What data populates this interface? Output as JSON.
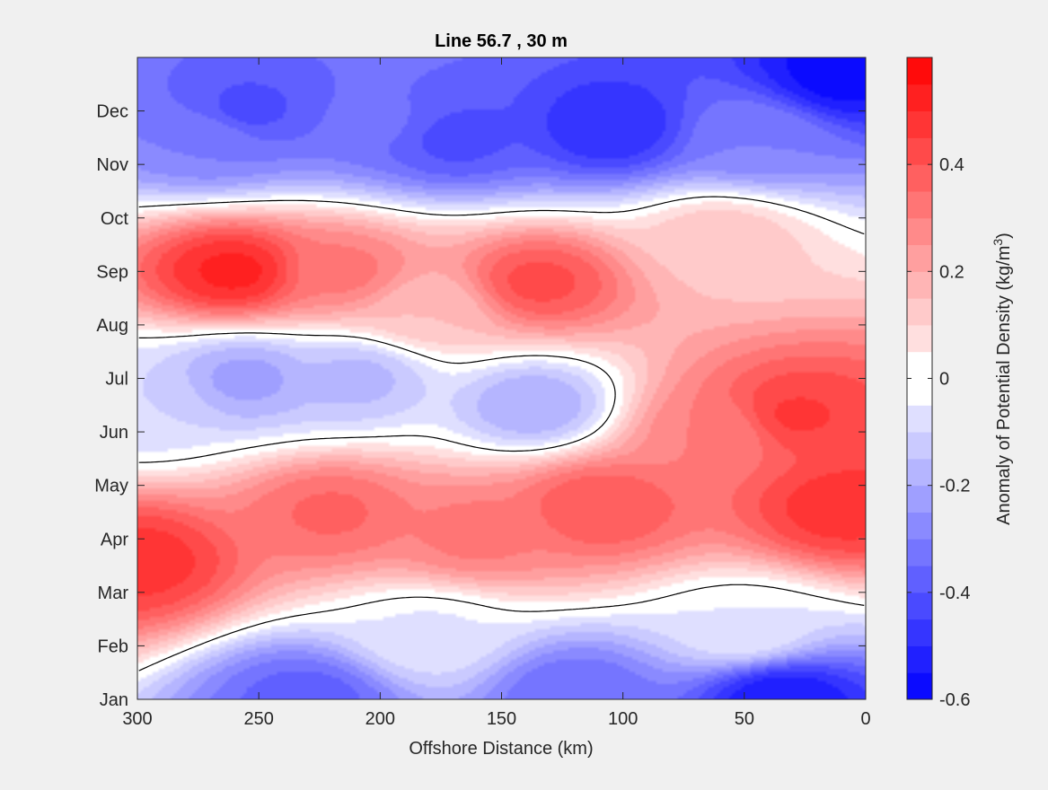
{
  "chart_data": {
    "type": "heatmap",
    "title": "Line 56.7 , 30 m",
    "xlabel": "Offshore Distance (km)",
    "ylabel": "",
    "colorbar_label": "Anomaly of Potential Density (kg/m",
    "colorbar_label_sup": "3",
    "colorbar_label_end": ")",
    "xlim": [
      300,
      0
    ],
    "x_reversed": true,
    "x_ticks": [
      "300",
      "250",
      "200",
      "150",
      "100",
      "50",
      "0"
    ],
    "x_tick_values": [
      300,
      250,
      200,
      150,
      100,
      50,
      0
    ],
    "y_ticks": [
      "Jan",
      "Feb",
      "Mar",
      "Apr",
      "May",
      "Jun",
      "Jul",
      "Aug",
      "Sep",
      "Oct",
      "Nov",
      "Dec"
    ],
    "clim": [
      -0.6,
      0.6
    ],
    "colorbar_ticks": [
      "-0.6",
      "-0.4",
      "-0.2",
      "0",
      "0.2",
      "0.4"
    ],
    "colorbar_tick_values": [
      -0.6,
      -0.4,
      -0.2,
      0,
      0.2,
      0.4
    ],
    "contour_levels_step": 0.05,
    "zero_contour_color": "#000000",
    "colormap": {
      "negative": "#0000ff",
      "zero": "#ffffff",
      "positive": "#ff0000"
    },
    "features": [
      {
        "x": 35,
        "month": 0,
        "value": -0.55
      },
      {
        "x": 10,
        "month": 11.7,
        "value": -0.58
      },
      {
        "x": 230,
        "month": 0,
        "value": -0.38
      },
      {
        "x": 120,
        "month": 0.1,
        "value": -0.35
      },
      {
        "x": 255,
        "month": 11.0,
        "value": -0.42
      },
      {
        "x": 105,
        "month": 10.7,
        "value": -0.5
      },
      {
        "x": 170,
        "month": 10.5,
        "value": -0.42
      },
      {
        "x": 200,
        "month": 10.8,
        "value": -0.34
      },
      {
        "x": 45,
        "month": 10.5,
        "value": -0.3
      },
      {
        "x": 270,
        "month": 10.5,
        "value": -0.3
      },
      {
        "x": 260,
        "month": 8.0,
        "value": 0.52
      },
      {
        "x": 215,
        "month": 8.0,
        "value": 0.32
      },
      {
        "x": 135,
        "month": 7.8,
        "value": 0.42
      },
      {
        "x": 180,
        "month": 7.3,
        "value": 0.15
      },
      {
        "x": 60,
        "month": 8.6,
        "value": 0.14
      },
      {
        "x": 30,
        "month": 5.3,
        "value": 0.46
      },
      {
        "x": 60,
        "month": 5.0,
        "value": 0.3
      },
      {
        "x": 10,
        "month": 3.6,
        "value": 0.48
      },
      {
        "x": 110,
        "month": 3.6,
        "value": 0.4
      },
      {
        "x": 220,
        "month": 3.5,
        "value": 0.36
      },
      {
        "x": 300,
        "month": 2.6,
        "value": 0.48
      },
      {
        "x": 160,
        "month": 3.1,
        "value": 0.32
      },
      {
        "x": 255,
        "month": 6.0,
        "value": -0.22
      },
      {
        "x": 210,
        "month": 6.0,
        "value": -0.17
      },
      {
        "x": 137,
        "month": 5.5,
        "value": -0.2
      },
      {
        "x": 298,
        "month": 5.5,
        "value": -0.1
      },
      {
        "x": 50,
        "month": 1.3,
        "value": -0.05
      },
      {
        "x": 180,
        "month": 1.2,
        "value": -0.06
      }
    ]
  }
}
